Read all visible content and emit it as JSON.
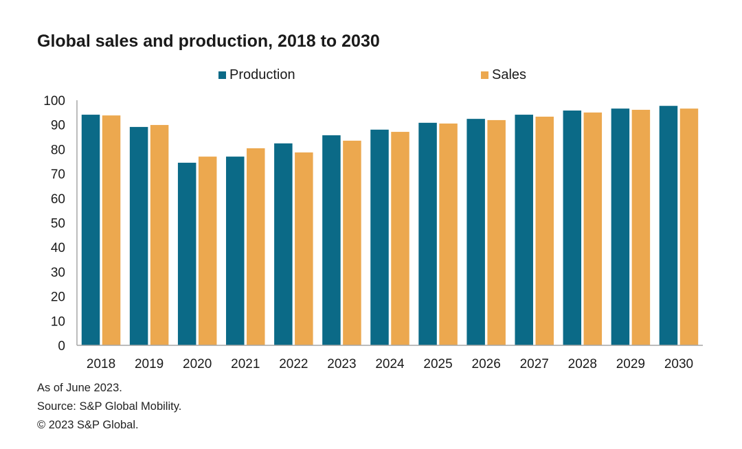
{
  "chart_data": {
    "type": "bar",
    "title": "Global sales and production, 2018 to 2030",
    "xlabel": "",
    "ylabel": "",
    "ylim": [
      0,
      100
    ],
    "yticks": [
      0,
      10,
      20,
      30,
      40,
      50,
      60,
      70,
      80,
      90,
      100
    ],
    "grid": false,
    "legend_position": "top",
    "categories": [
      "2018",
      "2019",
      "2020",
      "2021",
      "2022",
      "2023",
      "2024",
      "2025",
      "2026",
      "2027",
      "2028",
      "2029",
      "2030"
    ],
    "series": [
      {
        "name": "Production",
        "color": "#0b6a87",
        "values": [
          94.1,
          89.1,
          74.5,
          77.0,
          82.4,
          85.7,
          88.0,
          90.8,
          92.4,
          94.1,
          95.8,
          96.6,
          97.7
        ]
      },
      {
        "name": "Sales",
        "color": "#eca84f",
        "values": [
          93.8,
          89.9,
          77.0,
          80.4,
          78.7,
          83.5,
          87.1,
          90.5,
          91.9,
          93.3,
          95.0,
          96.1,
          96.6
        ]
      }
    ]
  },
  "notes": [
    "As of June 2023.",
    "Source: S&P Global Mobility.",
    "© 2023 S&P Global."
  ],
  "colors": {
    "axis": "#a6a6a6"
  }
}
